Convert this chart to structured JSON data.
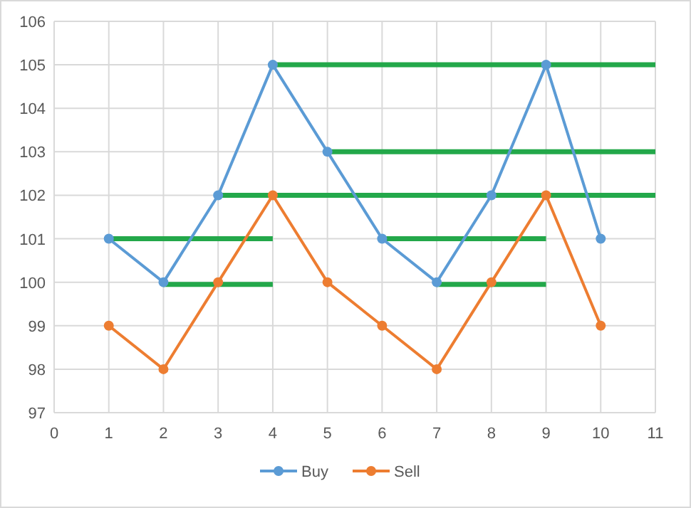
{
  "chart_data": {
    "type": "line",
    "xlim": [
      0,
      11
    ],
    "xticks": [
      0,
      1,
      2,
      3,
      4,
      5,
      6,
      7,
      8,
      9,
      10,
      11
    ],
    "ylim": [
      97,
      106
    ],
    "yticks": [
      97,
      98,
      99,
      100,
      101,
      102,
      103,
      104,
      105,
      106
    ],
    "grid": true,
    "legend": "bottom",
    "marker": "circle",
    "x": [
      1,
      2,
      3,
      4,
      5,
      6,
      7,
      8,
      9,
      10
    ],
    "series": [
      {
        "name": "Buy",
        "color": "#5b9bd5",
        "values": [
          101,
          100,
          102,
          105,
          103,
          101,
          100,
          102,
          105,
          101
        ]
      },
      {
        "name": "Sell",
        "color": "#ed7d31",
        "values": [
          99,
          98,
          100,
          102,
          100,
          99,
          98,
          100,
          102,
          99
        ]
      },
      {
        "color": "#23a84a",
        "x": [
          1,
          4
        ],
        "values": [
          101,
          101
        ],
        "marker": "none"
      },
      {
        "color": "#23a84a",
        "x": [
          2,
          4
        ],
        "values": [
          99.95,
          99.95
        ],
        "marker": "none"
      },
      {
        "color": "#23a84a",
        "x": [
          3,
          11
        ],
        "values": [
          102,
          102
        ],
        "marker": "none"
      },
      {
        "color": "#23a84a",
        "x": [
          4,
          11
        ],
        "values": [
          105,
          105
        ],
        "marker": "none"
      },
      {
        "color": "#23a84a",
        "x": [
          5,
          11
        ],
        "values": [
          103,
          103
        ],
        "marker": "none"
      },
      {
        "color": "#23a84a",
        "x": [
          6,
          9
        ],
        "values": [
          101,
          101
        ],
        "marker": "none"
      },
      {
        "color": "#23a84a",
        "x": [
          7,
          9
        ],
        "values": [
          99.95,
          99.95
        ],
        "marker": "none"
      }
    ]
  }
}
